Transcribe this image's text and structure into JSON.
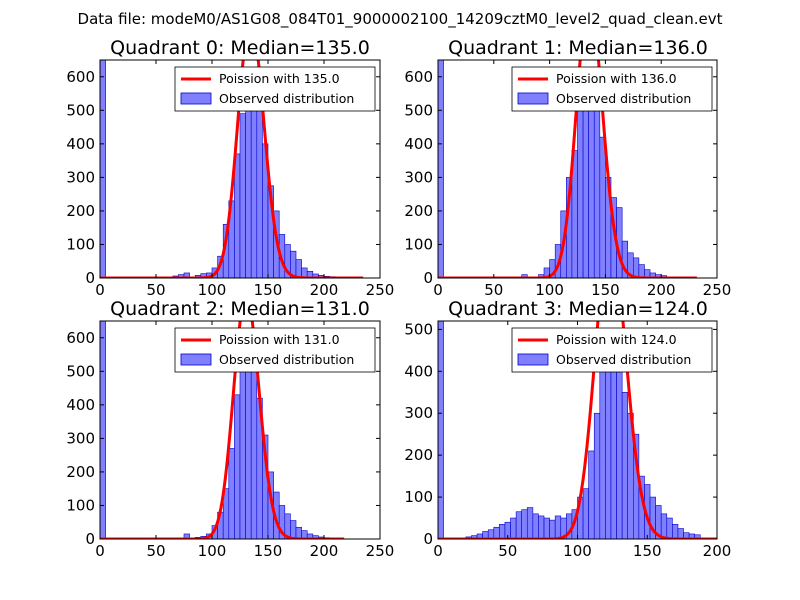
{
  "suptitle": "Data file: modeM0/AS1G08_084T01_9000002100_14209cztM0_level2_quad_clean.evt",
  "colors": {
    "hist_fill": "#8080ff",
    "hist_edge": "#0000cc",
    "line": "#ff0000",
    "axis": "#000000"
  },
  "chart_data": [
    {
      "type": "bar+line",
      "title": "Quadrant 0: Median=135.0",
      "xlim": [
        0,
        250
      ],
      "ylim": [
        0,
        650
      ],
      "xticks": [
        0,
        50,
        100,
        150,
        200,
        250
      ],
      "yticks": [
        0,
        100,
        200,
        300,
        400,
        500,
        600
      ],
      "xtick_labels": [
        "0",
        "50",
        "100",
        "150",
        "200",
        "250"
      ],
      "ytick_labels": [
        "0",
        "100",
        "200",
        "300",
        "400",
        "500",
        "600"
      ],
      "legend": {
        "loc": "top-right",
        "line_label": "Poission with 135.0",
        "bar_label": "Observed distribution"
      },
      "hist": {
        "bin_width": 5,
        "bins": [
          [
            0,
            650
          ],
          [
            65,
            6
          ],
          [
            70,
            10
          ],
          [
            75,
            15
          ],
          [
            85,
            8
          ],
          [
            90,
            13
          ],
          [
            95,
            15
          ],
          [
            100,
            30
          ],
          [
            105,
            65
          ],
          [
            110,
            160
          ],
          [
            115,
            230
          ],
          [
            120,
            370
          ],
          [
            125,
            490
          ],
          [
            130,
            580
          ],
          [
            135,
            600
          ],
          [
            140,
            560
          ],
          [
            145,
            400
          ],
          [
            150,
            275
          ],
          [
            155,
            200
          ],
          [
            160,
            130
          ],
          [
            165,
            100
          ],
          [
            170,
            80
          ],
          [
            175,
            55
          ],
          [
            180,
            30
          ],
          [
            185,
            20
          ],
          [
            190,
            12
          ],
          [
            195,
            8
          ],
          [
            200,
            5
          ],
          [
            205,
            4
          ],
          [
            210,
            2
          ],
          [
            215,
            2
          ]
        ]
      },
      "poisson": {
        "mean": 135.0,
        "x_range": [
          0,
          235
        ]
      }
    },
    {
      "type": "bar+line",
      "title": "Quadrant 1: Median=136.0",
      "xlim": [
        0,
        250
      ],
      "ylim": [
        0,
        650
      ],
      "xticks": [
        0,
        50,
        100,
        150,
        200,
        250
      ],
      "yticks": [
        0,
        100,
        200,
        300,
        400,
        500,
        600
      ],
      "xtick_labels": [
        "0",
        "50",
        "100",
        "150",
        "200",
        "250"
      ],
      "ytick_labels": [
        "0",
        "100",
        "200",
        "300",
        "400",
        "500",
        "600"
      ],
      "legend": {
        "loc": "top-right",
        "line_label": "Poission with 136.0",
        "bar_label": "Observed distribution"
      },
      "hist": {
        "bin_width": 5,
        "bins": [
          [
            0,
            650
          ],
          [
            75,
            10
          ],
          [
            85,
            3
          ],
          [
            90,
            10
          ],
          [
            95,
            30
          ],
          [
            100,
            55
          ],
          [
            105,
            100
          ],
          [
            110,
            200
          ],
          [
            115,
            300
          ],
          [
            120,
            380
          ],
          [
            125,
            530
          ],
          [
            130,
            590
          ],
          [
            135,
            580
          ],
          [
            140,
            560
          ],
          [
            145,
            420
          ],
          [
            150,
            300
          ],
          [
            155,
            240
          ],
          [
            160,
            210
          ],
          [
            165,
            110
          ],
          [
            170,
            75
          ],
          [
            175,
            60
          ],
          [
            180,
            40
          ],
          [
            185,
            25
          ],
          [
            190,
            15
          ],
          [
            195,
            10
          ],
          [
            200,
            7
          ],
          [
            205,
            3
          ],
          [
            210,
            2
          ]
        ]
      },
      "poisson": {
        "mean": 136.0,
        "x_range": [
          0,
          232
        ]
      }
    },
    {
      "type": "bar+line",
      "title": "Quadrant 2: Median=131.0",
      "xlim": [
        0,
        250
      ],
      "ylim": [
        0,
        650
      ],
      "xticks": [
        0,
        50,
        100,
        150,
        200,
        250
      ],
      "yticks": [
        0,
        100,
        200,
        300,
        400,
        500,
        600
      ],
      "xtick_labels": [
        "0",
        "50",
        "100",
        "150",
        "200",
        "250"
      ],
      "ytick_labels": [
        "0",
        "100",
        "200",
        "300",
        "400",
        "500",
        "600"
      ],
      "legend": {
        "loc": "top-right",
        "line_label": "Poission with 131.0",
        "bar_label": "Observed distribution"
      },
      "hist": {
        "bin_width": 5,
        "bins": [
          [
            0,
            650
          ],
          [
            75,
            15
          ],
          [
            85,
            5
          ],
          [
            90,
            8
          ],
          [
            95,
            15
          ],
          [
            100,
            40
          ],
          [
            105,
            80
          ],
          [
            110,
            150
          ],
          [
            115,
            270
          ],
          [
            120,
            430
          ],
          [
            125,
            560
          ],
          [
            130,
            610
          ],
          [
            135,
            580
          ],
          [
            140,
            420
          ],
          [
            145,
            310
          ],
          [
            150,
            200
          ],
          [
            155,
            140
          ],
          [
            160,
            100
          ],
          [
            165,
            75
          ],
          [
            170,
            55
          ],
          [
            175,
            35
          ],
          [
            180,
            25
          ],
          [
            185,
            15
          ],
          [
            190,
            10
          ],
          [
            195,
            6
          ],
          [
            200,
            4
          ],
          [
            205,
            3
          ],
          [
            210,
            2
          ]
        ]
      },
      "poisson": {
        "mean": 131.0,
        "x_range": [
          0,
          218
        ]
      }
    },
    {
      "type": "bar+line",
      "title": "Quadrant 3: Median=124.0",
      "xlim": [
        0,
        200
      ],
      "ylim": [
        0,
        520
      ],
      "xticks": [
        0,
        50,
        100,
        150,
        200
      ],
      "yticks": [
        0,
        100,
        200,
        300,
        400,
        500
      ],
      "xtick_labels": [
        "0",
        "50",
        "100",
        "150",
        "200"
      ],
      "ytick_labels": [
        "0",
        "100",
        "200",
        "300",
        "400",
        "500"
      ],
      "legend": {
        "loc": "top-right",
        "line_label": "Poission with 124.0",
        "bar_label": "Observed distribution"
      },
      "hist": {
        "bin_width": 4,
        "bins": [
          [
            0,
            520
          ],
          [
            20,
            5
          ],
          [
            24,
            8
          ],
          [
            28,
            12
          ],
          [
            32,
            18
          ],
          [
            36,
            22
          ],
          [
            40,
            28
          ],
          [
            44,
            35
          ],
          [
            48,
            40
          ],
          [
            52,
            50
          ],
          [
            56,
            65
          ],
          [
            60,
            70
          ],
          [
            64,
            75
          ],
          [
            68,
            60
          ],
          [
            72,
            55
          ],
          [
            76,
            50
          ],
          [
            80,
            45
          ],
          [
            84,
            55
          ],
          [
            88,
            50
          ],
          [
            92,
            60
          ],
          [
            96,
            70
          ],
          [
            100,
            100
          ],
          [
            104,
            120
          ],
          [
            108,
            210
          ],
          [
            112,
            300
          ],
          [
            116,
            430
          ],
          [
            120,
            500
          ],
          [
            124,
            480
          ],
          [
            128,
            430
          ],
          [
            132,
            350
          ],
          [
            136,
            300
          ],
          [
            140,
            250
          ],
          [
            144,
            150
          ],
          [
            148,
            130
          ],
          [
            152,
            100
          ],
          [
            156,
            80
          ],
          [
            160,
            60
          ],
          [
            164,
            50
          ],
          [
            168,
            35
          ],
          [
            172,
            25
          ],
          [
            176,
            15
          ],
          [
            180,
            12
          ],
          [
            184,
            10
          ]
        ]
      },
      "poisson": {
        "mean": 124.0,
        "x_range": [
          0,
          200
        ]
      }
    }
  ]
}
